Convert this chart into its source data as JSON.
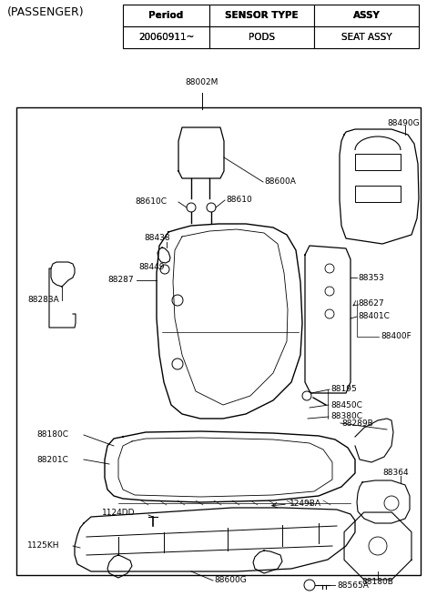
{
  "title": "(PASSENGER)",
  "bg_color": "#ffffff",
  "text_color": "#000000",
  "table": {
    "headers": [
      "Period",
      "SENSOR TYPE",
      "ASSY"
    ],
    "row": [
      "20060911~",
      "PODS",
      "SEAT ASSY"
    ]
  },
  "figsize": [
    4.8,
    6.55
  ],
  "dpi": 100
}
